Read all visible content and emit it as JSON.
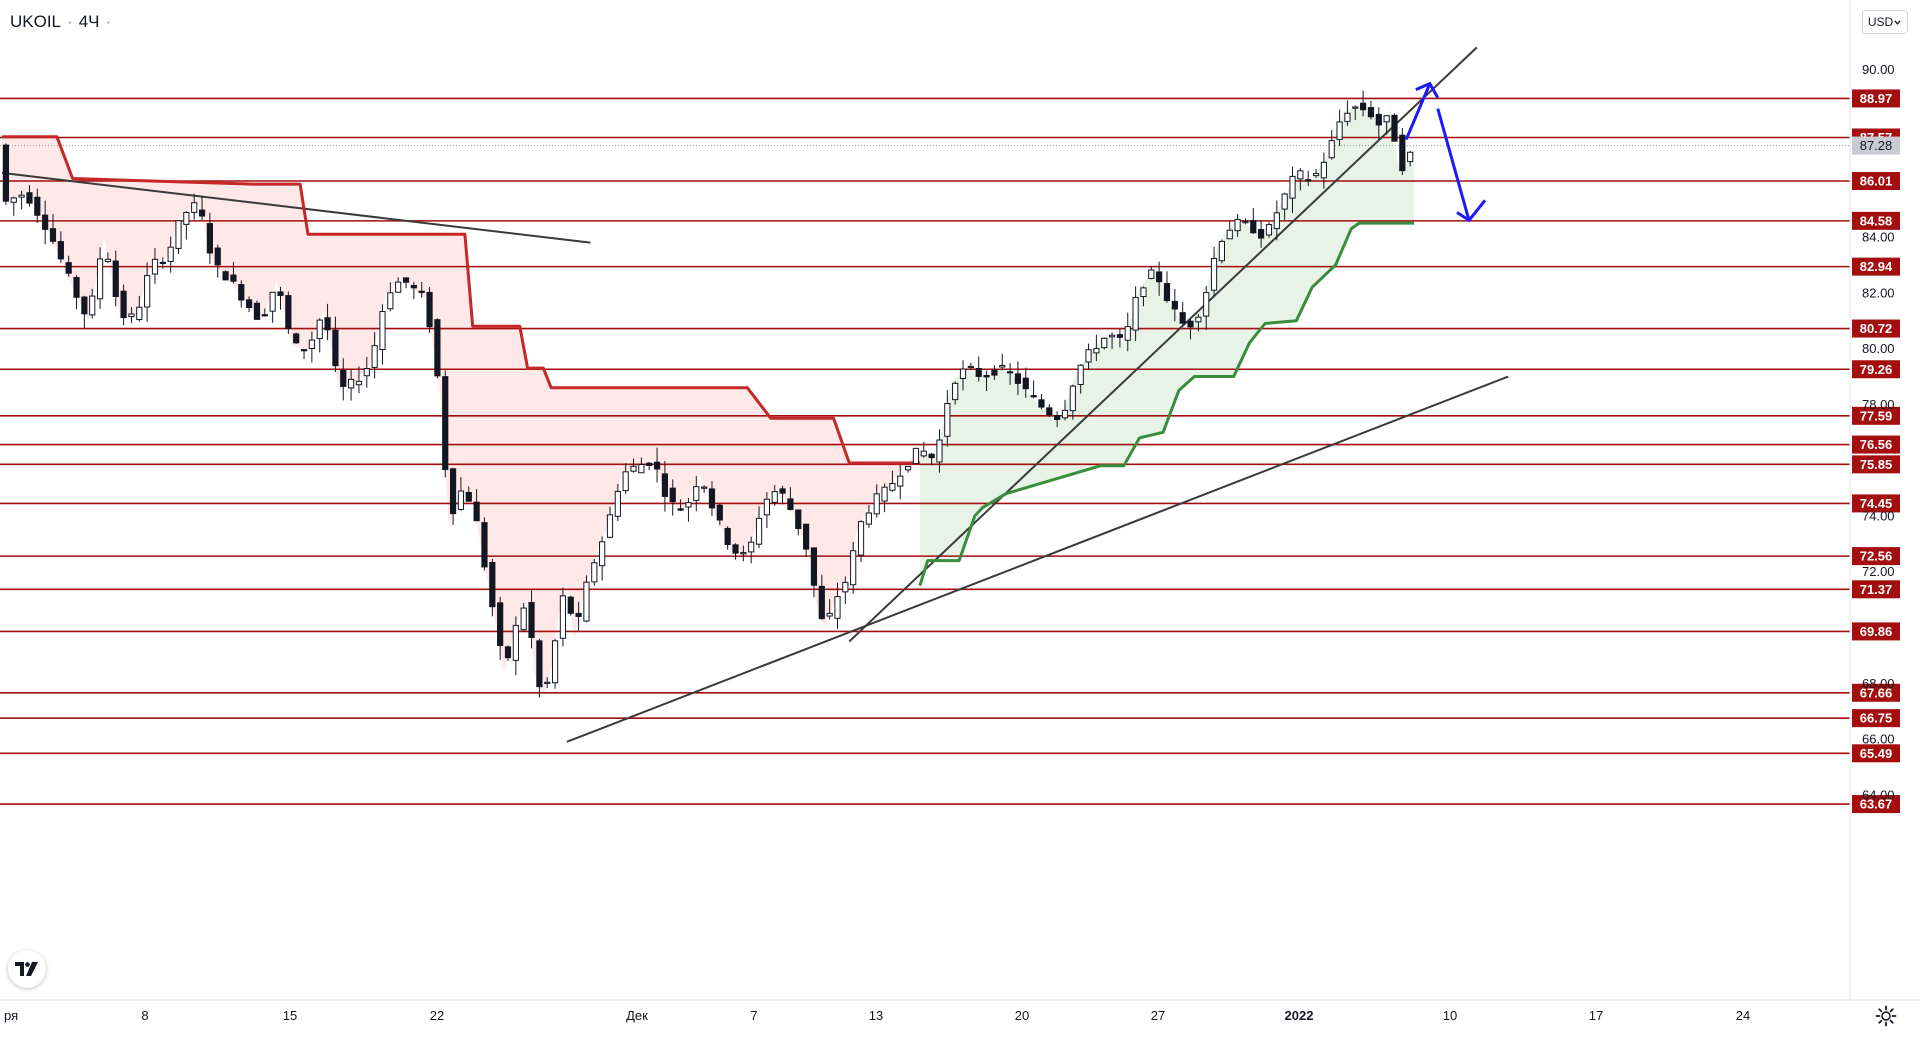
{
  "header": {
    "symbol": "UKOIL",
    "separator": "·",
    "interval": "4Ч",
    "currency": "USD"
  },
  "logo": {
    "label": "TV",
    "icon": "tradingview-logo-icon"
  },
  "settings": {
    "icon": "gear-icon"
  },
  "colors": {
    "level_line": "#a50e0e",
    "level_label_bg": "#a50e0e",
    "current_label_bg": "#c8cbd3",
    "supertrend_down": "#c62828",
    "supertrend_up": "#388e3c",
    "fill_down": "#ffe5e5",
    "fill_up": "#e3f2e3",
    "trendline": "#3a3a3a",
    "forecast_arrow": "#1a1aff",
    "candle": "#131722"
  },
  "chart_data": {
    "type": "candlestick",
    "title": "UKOIL · 4Ч",
    "x_axis": {
      "tick_labels": [
        "ря",
        "8",
        "15",
        "22",
        "Дек",
        "7",
        "13",
        "20",
        "27",
        "2022",
        "10",
        "17",
        "24"
      ]
    },
    "y_axis": {
      "range": [
        63.2,
        91.2
      ],
      "tick_labels": [
        "90.00",
        "84.00",
        "82.00",
        "80.00",
        "78.00",
        "74.00",
        "72.00",
        "68.00",
        "66.00",
        "64.00"
      ]
    },
    "current_price": "87.28",
    "levels": [
      "88.97",
      "87.57",
      "86.01",
      "84.58",
      "82.94",
      "80.72",
      "79.26",
      "77.59",
      "76.56",
      "75.85",
      "74.45",
      "72.56",
      "71.37",
      "69.86",
      "67.66",
      "66.75",
      "65.49",
      "63.67"
    ],
    "price_path": [
      {
        "t": 0,
        "p": 85.2
      },
      {
        "t": 3,
        "p": 85.6
      },
      {
        "t": 6,
        "p": 84.2
      },
      {
        "t": 9,
        "p": 82.2
      },
      {
        "t": 11,
        "p": 81.0
      },
      {
        "t": 13,
        "p": 84.0
      },
      {
        "t": 15,
        "p": 81.2
      },
      {
        "t": 17,
        "p": 81.1
      },
      {
        "t": 19,
        "p": 83.0
      },
      {
        "t": 21,
        "p": 83.3
      },
      {
        "t": 23,
        "p": 84.8
      },
      {
        "t": 25,
        "p": 85.2
      },
      {
        "t": 27,
        "p": 83.0
      },
      {
        "t": 29,
        "p": 82.5
      },
      {
        "t": 31,
        "p": 81.7
      },
      {
        "t": 33,
        "p": 81.0
      },
      {
        "t": 35,
        "p": 82.4
      },
      {
        "t": 37,
        "p": 80.1
      },
      {
        "t": 39,
        "p": 80.0
      },
      {
        "t": 41,
        "p": 81.4
      },
      {
        "t": 43,
        "p": 78.5
      },
      {
        "t": 45,
        "p": 78.8
      },
      {
        "t": 47,
        "p": 79.5
      },
      {
        "t": 49,
        "p": 82.0
      },
      {
        "t": 51,
        "p": 82.5
      },
      {
        "t": 53,
        "p": 82.0
      },
      {
        "t": 54,
        "p": 81.8
      },
      {
        "t": 55,
        "p": 80.0
      },
      {
        "t": 56,
        "p": 78.0
      },
      {
        "t": 57,
        "p": 73.5
      },
      {
        "t": 58,
        "p": 75.0
      },
      {
        "t": 60,
        "p": 74.5
      },
      {
        "t": 62,
        "p": 71.5
      },
      {
        "t": 63,
        "p": 70.0
      },
      {
        "t": 64,
        "p": 68.4
      },
      {
        "t": 65,
        "p": 69.5
      },
      {
        "t": 66,
        "p": 70.5
      },
      {
        "t": 67,
        "p": 71.0
      },
      {
        "t": 68,
        "p": 68.2
      },
      {
        "t": 69,
        "p": 67.5
      },
      {
        "t": 70,
        "p": 68.5
      },
      {
        "t": 71,
        "p": 70.5
      },
      {
        "t": 72,
        "p": 71.6
      },
      {
        "t": 73,
        "p": 69.5
      },
      {
        "t": 74,
        "p": 71.0
      },
      {
        "t": 75,
        "p": 72.0
      },
      {
        "t": 77,
        "p": 73.5
      },
      {
        "t": 79,
        "p": 75.5
      },
      {
        "t": 81,
        "p": 75.8
      },
      {
        "t": 83,
        "p": 76.0
      },
      {
        "t": 85,
        "p": 74.5
      },
      {
        "t": 87,
        "p": 74.2
      },
      {
        "t": 89,
        "p": 75.5
      },
      {
        "t": 91,
        "p": 74.0
      },
      {
        "t": 93,
        "p": 72.8
      },
      {
        "t": 95,
        "p": 72.5
      },
      {
        "t": 97,
        "p": 74.5
      },
      {
        "t": 99,
        "p": 75.0
      },
      {
        "t": 101,
        "p": 74.0
      },
      {
        "t": 103,
        "p": 72.5
      },
      {
        "t": 104,
        "p": 70.5
      },
      {
        "t": 105,
        "p": 70.0
      },
      {
        "t": 106,
        "p": 70.8
      },
      {
        "t": 107,
        "p": 71.5
      },
      {
        "t": 108,
        "p": 71.8
      },
      {
        "t": 109,
        "p": 73.5
      },
      {
        "t": 111,
        "p": 74.5
      },
      {
        "t": 113,
        "p": 75.0
      },
      {
        "t": 115,
        "p": 75.8
      },
      {
        "t": 117,
        "p": 76.4
      },
      {
        "t": 119,
        "p": 76.0
      },
      {
        "t": 121,
        "p": 78.8
      },
      {
        "t": 123,
        "p": 79.3
      },
      {
        "t": 125,
        "p": 79.0
      },
      {
        "t": 127,
        "p": 79.3
      },
      {
        "t": 129,
        "p": 79.0
      },
      {
        "t": 131,
        "p": 78.3
      },
      {
        "t": 133,
        "p": 77.8
      },
      {
        "t": 135,
        "p": 77.5
      },
      {
        "t": 137,
        "p": 79.2
      },
      {
        "t": 139,
        "p": 80.0
      },
      {
        "t": 141,
        "p": 80.5
      },
      {
        "t": 143,
        "p": 80.2
      },
      {
        "t": 145,
        "p": 82.2
      },
      {
        "t": 147,
        "p": 82.8
      },
      {
        "t": 149,
        "p": 81.5
      },
      {
        "t": 151,
        "p": 80.7
      },
      {
        "t": 153,
        "p": 81.5
      },
      {
        "t": 155,
        "p": 83.8
      },
      {
        "t": 157,
        "p": 84.5
      },
      {
        "t": 159,
        "p": 84.4
      },
      {
        "t": 161,
        "p": 84.0
      },
      {
        "t": 163,
        "p": 85.2
      },
      {
        "t": 165,
        "p": 86.3
      },
      {
        "t": 167,
        "p": 86.0
      },
      {
        "t": 169,
        "p": 87.0
      },
      {
        "t": 171,
        "p": 88.5
      },
      {
        "t": 173,
        "p": 88.7
      },
      {
        "t": 175,
        "p": 88.3
      },
      {
        "t": 176,
        "p": 87.8
      },
      {
        "t": 177,
        "p": 88.6
      },
      {
        "t": 178,
        "p": 86.5
      },
      {
        "t": 179,
        "p": 86.6
      },
      {
        "t": 180,
        "p": 87.3
      }
    ],
    "supertrend": {
      "down": [
        {
          "t": 0,
          "p": 87.6
        },
        {
          "t": 7,
          "p": 87.6
        },
        {
          "t": 9,
          "p": 86.1
        },
        {
          "t": 32,
          "p": 85.9
        },
        {
          "t": 38,
          "p": 85.9
        },
        {
          "t": 39,
          "p": 84.1
        },
        {
          "t": 59,
          "p": 84.1
        },
        {
          "t": 60,
          "p": 80.8
        },
        {
          "t": 66,
          "p": 80.8
        },
        {
          "t": 67,
          "p": 79.3
        },
        {
          "t": 69,
          "p": 79.3
        },
        {
          "t": 70,
          "p": 78.6
        },
        {
          "t": 95,
          "p": 78.6
        },
        {
          "t": 98,
          "p": 77.5
        },
        {
          "t": 106,
          "p": 77.5
        },
        {
          "t": 108,
          "p": 75.9
        },
        {
          "t": 117,
          "p": 75.9
        }
      ],
      "up": [
        {
          "t": 117,
          "p": 71.5
        },
        {
          "t": 118,
          "p": 72.4
        },
        {
          "t": 122,
          "p": 72.4
        },
        {
          "t": 124,
          "p": 74.0
        },
        {
          "t": 125,
          "p": 74.3
        },
        {
          "t": 128,
          "p": 74.8
        },
        {
          "t": 140,
          "p": 75.8
        },
        {
          "t": 143,
          "p": 75.8
        },
        {
          "t": 145,
          "p": 76.8
        },
        {
          "t": 148,
          "p": 77.0
        },
        {
          "t": 150,
          "p": 78.5
        },
        {
          "t": 152,
          "p": 79.0
        },
        {
          "t": 157,
          "p": 79.0
        },
        {
          "t": 159,
          "p": 80.2
        },
        {
          "t": 161,
          "p": 80.9
        },
        {
          "t": 165,
          "p": 81.0
        },
        {
          "t": 167,
          "p": 82.2
        },
        {
          "t": 170,
          "p": 83.0
        },
        {
          "t": 172,
          "p": 84.3
        },
        {
          "t": 173,
          "p": 84.5
        },
        {
          "t": 180,
          "p": 84.5
        }
      ]
    },
    "trendlines": [
      {
        "from": {
          "t": 0,
          "p": 86.3
        },
        "to": {
          "t": 75,
          "p": 83.8
        }
      },
      {
        "from": {
          "t": 72,
          "p": 65.9
        },
        "to": {
          "t": 192,
          "p": 79.0
        }
      },
      {
        "from": {
          "t": 108,
          "p": 69.5
        },
        "to": {
          "t": 188,
          "p": 90.8
        }
      }
    ],
    "forecast": [
      {
        "t": 179,
        "p": 87.5
      },
      {
        "t": 182,
        "p": 89.5
      },
      {
        "t": 187,
        "p": 84.6
      }
    ]
  }
}
